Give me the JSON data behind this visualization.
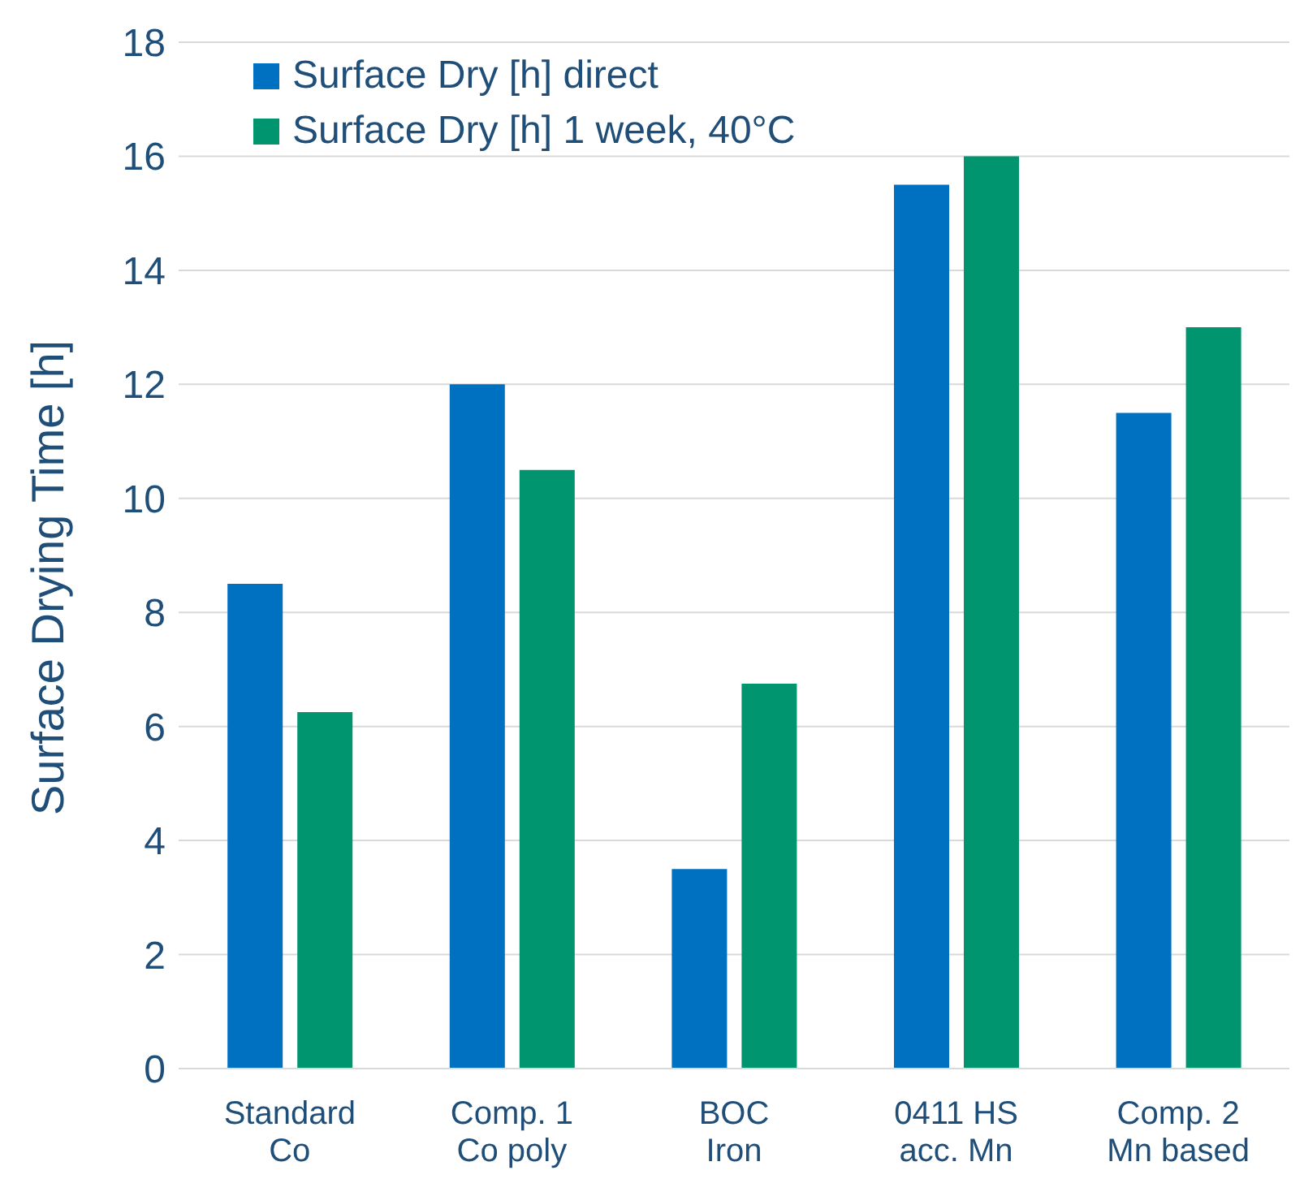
{
  "chart_data": {
    "type": "bar",
    "ylabel": "Surface Drying Time [h]",
    "categories": [
      "Standard Co",
      "Comp. 1 Co poly",
      "BOC Iron",
      "0411 HS acc. Mn",
      "Comp. 2 Mn based"
    ],
    "series": [
      {
        "name": "Surface Dry [h] direct",
        "color": "#0070c0",
        "values": [
          8.5,
          12,
          3.5,
          15.5,
          11.5
        ]
      },
      {
        "name": "Surface Dry [h] 1 week, 40°C",
        "color": "#00956e",
        "values": [
          6.25,
          10.5,
          6.75,
          16,
          13
        ]
      }
    ],
    "ylim": [
      0,
      18
    ],
    "yticks": [
      0,
      2,
      4,
      6,
      8,
      10,
      12,
      14,
      16,
      18
    ],
    "grid": "y",
    "legend": "top left"
  }
}
